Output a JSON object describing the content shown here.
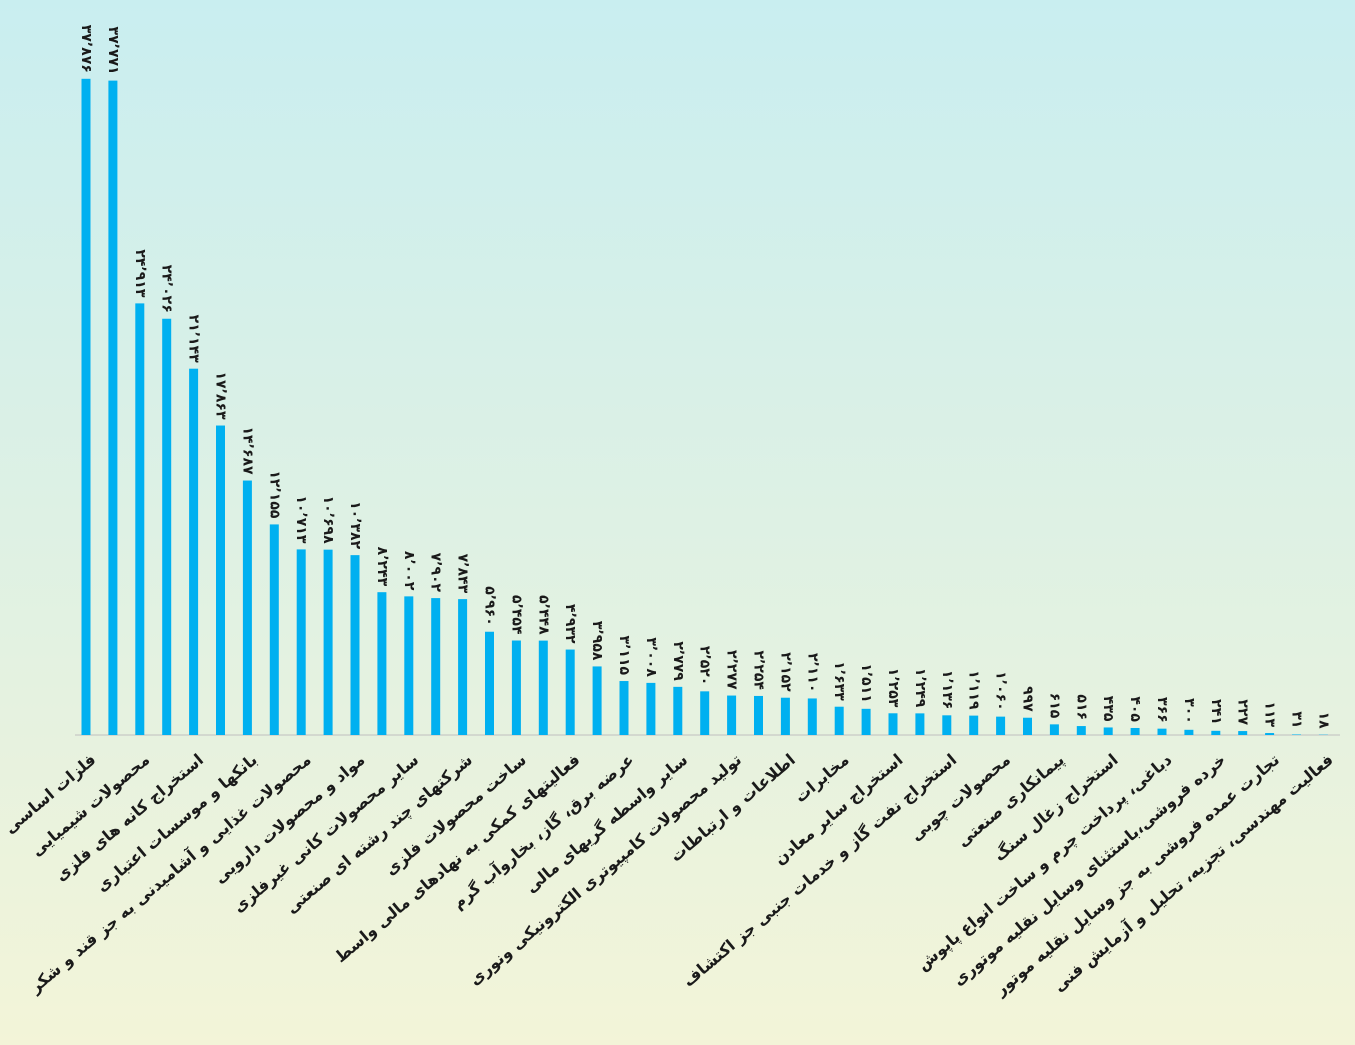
{
  "chart_data": {
    "type": "bar",
    "color": "#00b0f0",
    "ylim": [
      0,
      40000
    ],
    "categories": [
      "فلزات اساسی",
      null,
      "محصولات شیمیایی",
      null,
      "استخراج کانه های فلزی",
      null,
      "بانکها و موسسات اعتباری",
      null,
      "محصولات غذایی و آشامیدنی به جز قند و شکر",
      null,
      "مواد و محصولات دارویی",
      null,
      "سایر محصولات کانی غیرفلزی",
      null,
      "شرکتهای چند رشته ای صنعتی",
      null,
      "ساخت محصولات فلزی",
      null,
      "فعالیتهای کمکی به نهادهای مالی واسط",
      null,
      "عرضه برق، گاز، بخاروآب گرم",
      null,
      "سایر واسطه گریهای مالی",
      null,
      "تولید محصولات کامپیوتری الکترونیکی ونوری",
      null,
      "اطلاعات و ارتباطات",
      null,
      "مخابرات",
      null,
      "استخراج سایر معادن",
      null,
      "استخراج نفت گاز و خدمات جنبی جز اکتشاف",
      null,
      "محصولات چوبی",
      null,
      "پیمانکاری صنعتی",
      null,
      "استخراج زغال سنگ",
      null,
      "دباغی، پرداخت چرم و ساخت انواع پاپوش",
      null,
      "خرده فروشی،باستثنای وسایل نقلیه موتوری",
      null,
      "تجارت عمده فروشی به جز وسایل نقلیه موتور",
      null,
      "فعالیت مهندسی، تجزیه، تحلیل و آزمایش فنی"
    ],
    "values": [
      37876,
      37771,
      24913,
      24026,
      21143,
      17863,
      14687,
      12155,
      10713,
      10698,
      10382,
      8243,
      8002,
      7902,
      7843,
      5960,
      5454,
      5448,
      4932,
      3958,
      3115,
      3008,
      2779,
      2520,
      2277,
      2254,
      2152,
      2110,
      1633,
      1511,
      1253,
      1249,
      1136,
      1119,
      1060,
      997,
      615,
      516,
      435,
      405,
      366,
      300,
      241,
      227,
      113,
      31,
      18
    ],
    "value_labels": [
      "۳۷٬۸۷۶",
      "۳۷٬۷۷۱",
      "۲۴٬۹۱۳",
      "۲۴٬۰۲۶",
      "۲۱٬۱۴۳",
      "۱۷٬۸۶۳",
      "۱۴٬۶۸۷",
      "۱۲٬۱۵۵",
      "۱۰٬۷۱۳",
      "۱۰٬۶۹۸",
      "۱۰٬۳۸۲",
      "۸٬۲۴۳",
      "۸٬۰۰۲",
      "۷٬۹۰۲",
      "۷٬۸۴۳",
      "۵٬۹۶۰",
      "۵٬۴۵۴",
      "۵٬۴۴۸",
      "۴٬۹۳۲",
      "۳٬۹۵۸",
      "۳٬۱۱۵",
      "۳٬۰۰۸",
      "۲٬۷۷۹",
      "۲٬۵۲۰",
      "۲٬۲۷۷",
      "۲٬۲۵۴",
      "۲٬۱۵۲",
      "۲٬۱۱۰",
      "۱٬۶۳۳",
      "۱٬۵۱۱",
      "۱٬۲۵۳",
      "۱٬۲۴۹",
      "۱٬۱۳۶",
      "۱٬۱۱۹",
      "۱٬۰۶۰",
      "۹۹۷",
      "۶۱۵",
      "۵۱۶",
      "۴۳۵",
      "۴۰۵",
      "۳۶۶",
      "۳۰۰",
      "۲۴۱",
      "۲۲۷",
      "۱۱۳",
      "۳۱",
      "۱۸"
    ]
  }
}
